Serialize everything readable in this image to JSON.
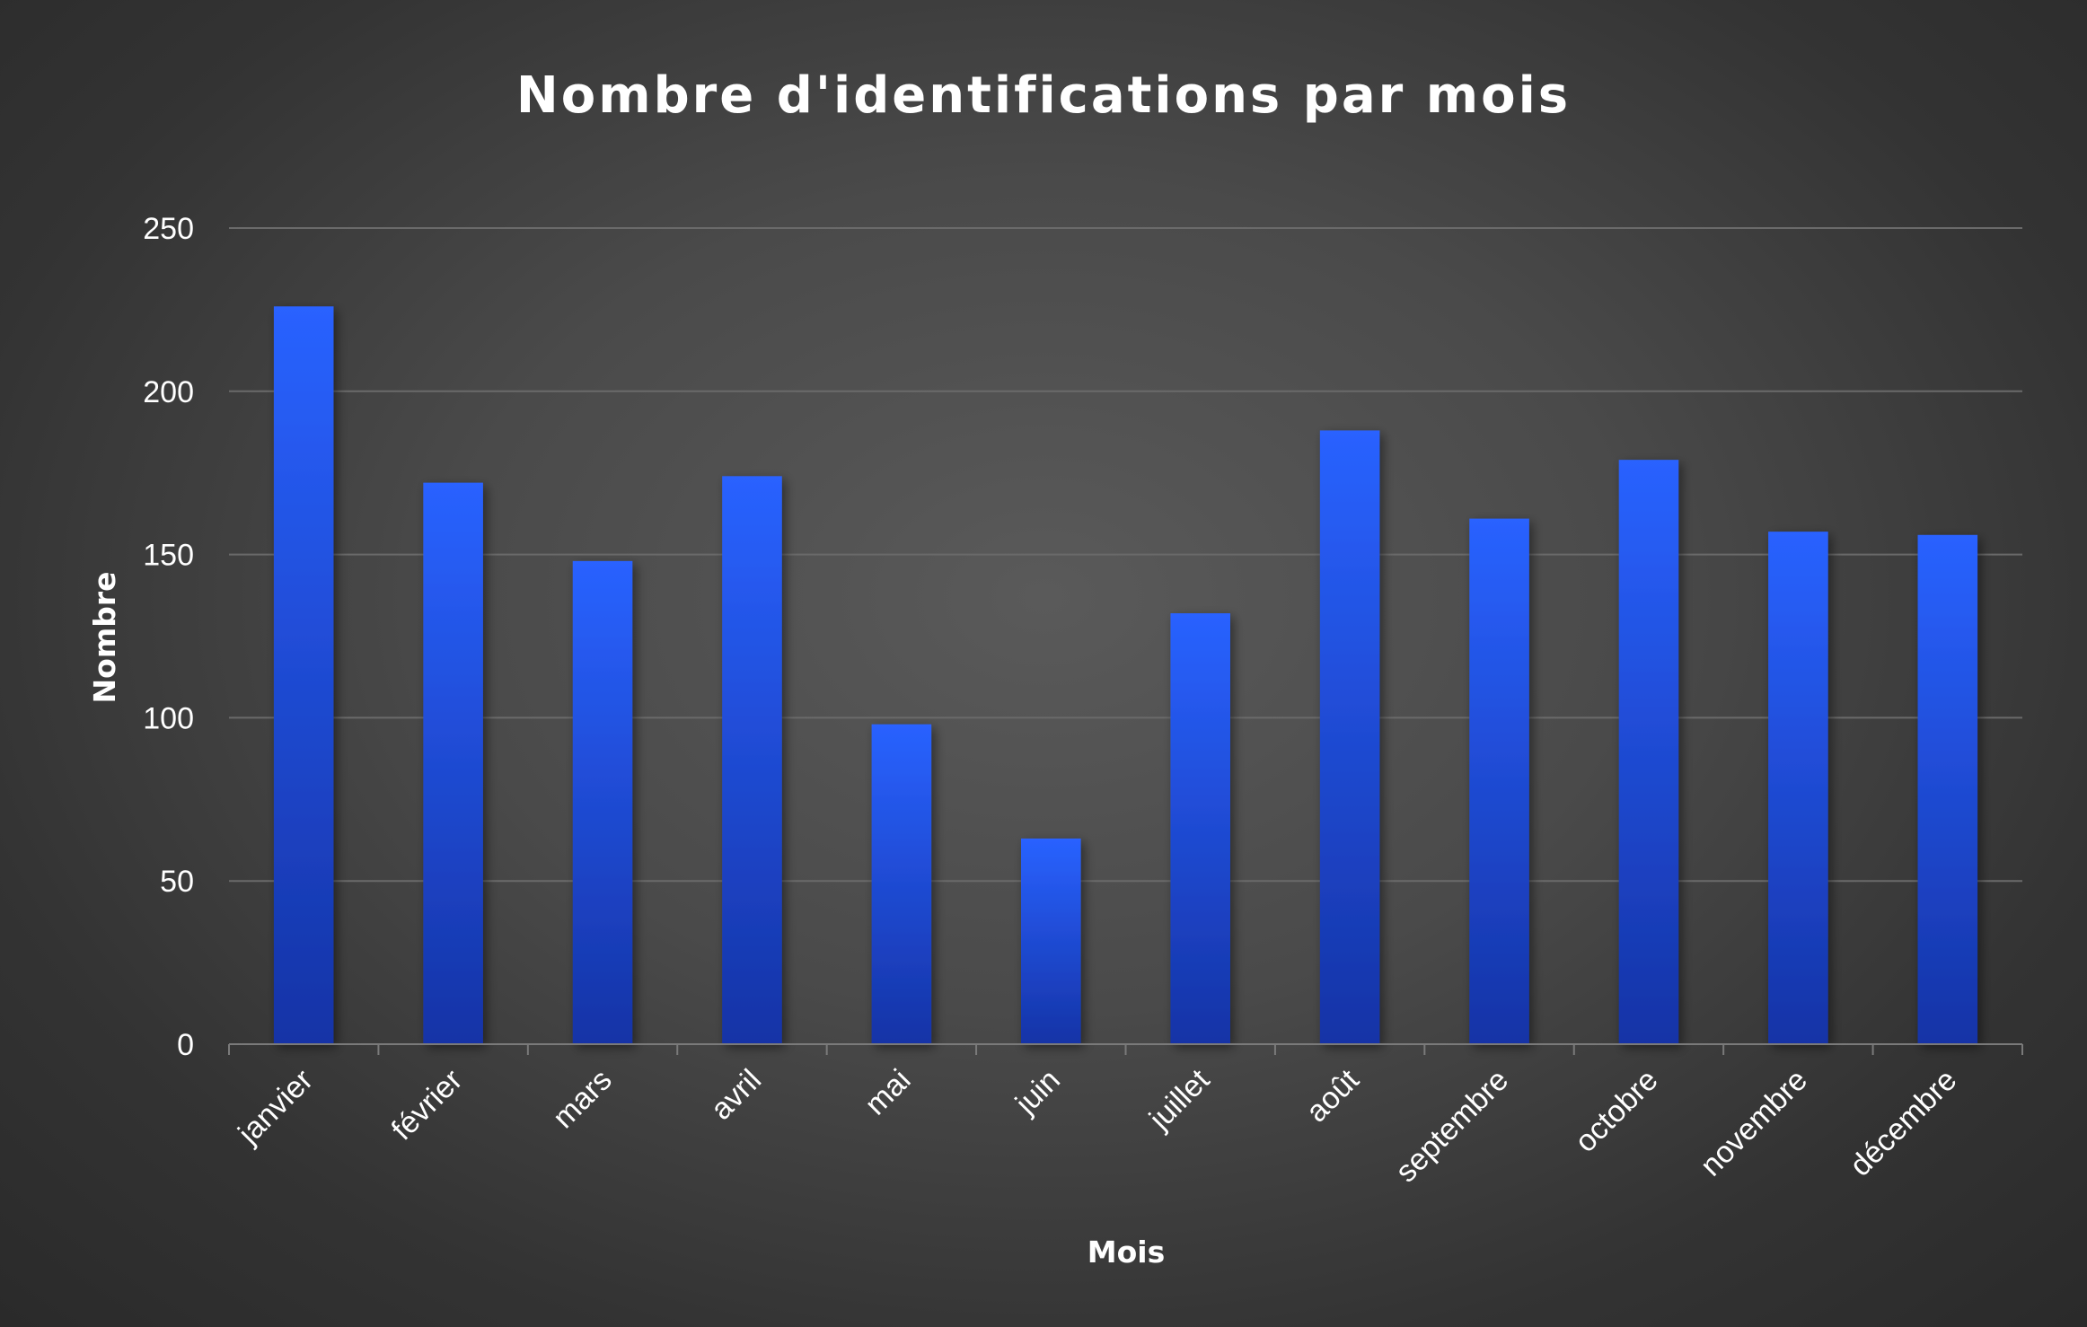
{
  "chart_data": {
    "type": "bar",
    "title": "Nombre d'identifications par mois",
    "xlabel": "Mois",
    "ylabel": "Nombre",
    "categories": [
      "janvier",
      "février",
      "mars",
      "avril",
      "mai",
      "juin",
      "juillet",
      "août",
      "septembre",
      "octobre",
      "novembre",
      "décembre"
    ],
    "values": [
      226,
      172,
      148,
      174,
      98,
      63,
      132,
      188,
      161,
      179,
      157,
      156
    ],
    "ylim": [
      0,
      250
    ],
    "yticks": [
      "0",
      "50",
      "100",
      "150",
      "200",
      "250"
    ],
    "grid": true,
    "legend": "none",
    "colors": {
      "bar_top": "#2962ff",
      "bar_bottom": "#1533a6",
      "text": "#ffffff",
      "grid": "#6a6a6a"
    }
  }
}
